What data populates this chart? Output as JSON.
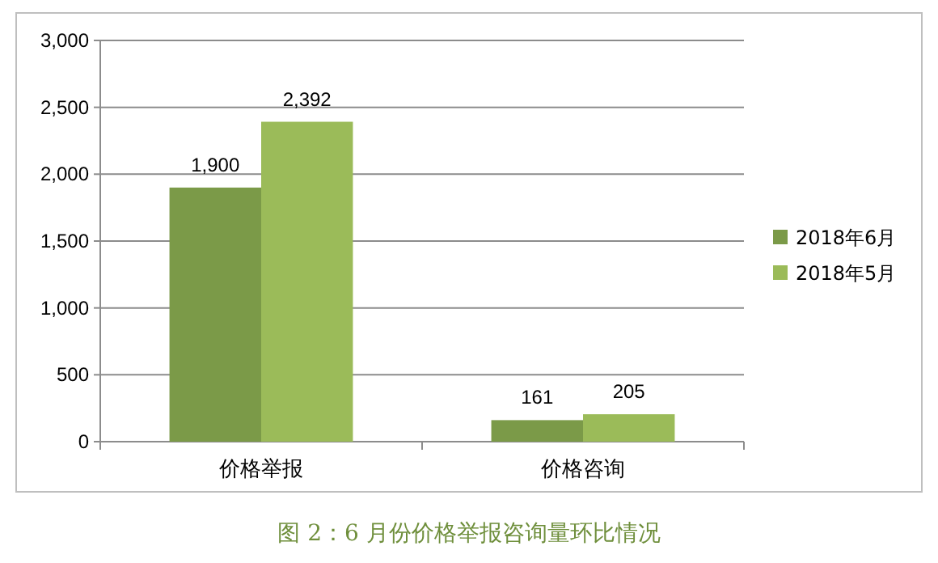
{
  "chart_data": {
    "type": "bar",
    "categories": [
      "价格举报",
      "价格咨询"
    ],
    "series": [
      {
        "name": "2018年6月",
        "color": "#7b9a48",
        "values": [
          1900,
          161
        ],
        "value_labels": [
          "1,900",
          "161"
        ]
      },
      {
        "name": "2018年5月",
        "color": "#9bbb59",
        "values": [
          2392,
          205
        ],
        "value_labels": [
          "2,392",
          "205"
        ]
      }
    ],
    "ylim": [
      0,
      3000
    ],
    "yticks": [
      {
        "value": 0,
        "label": "0"
      },
      {
        "value": 500,
        "label": "500"
      },
      {
        "value": 1000,
        "label": "1,000"
      },
      {
        "value": 1500,
        "label": "1,500"
      },
      {
        "value": 2000,
        "label": "2,000"
      },
      {
        "value": 2500,
        "label": "2,500"
      },
      {
        "value": 3000,
        "label": "3,000"
      }
    ],
    "grid": "y",
    "legend": "right",
    "annotations": [
      "图 2：6 月份价格举报咨询量环比情况"
    ]
  }
}
